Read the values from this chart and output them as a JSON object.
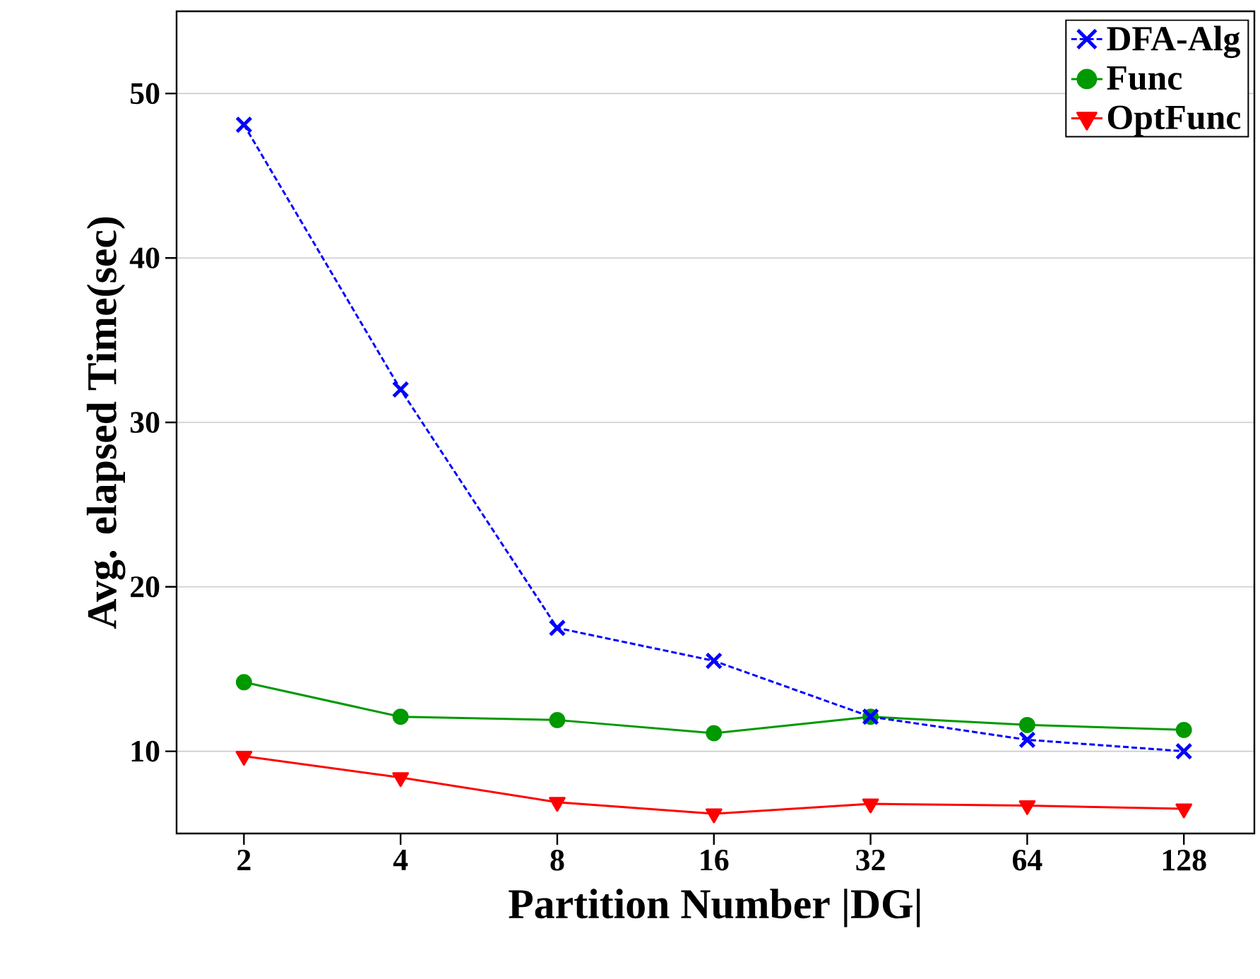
{
  "chart_data": {
    "type": "line",
    "xlabel": "Partition Number |DG|",
    "ylabel": "Avg. elapsed Time(sec)",
    "categories": [
      "2",
      "4",
      "8",
      "16",
      "32",
      "64",
      "128"
    ],
    "series": [
      {
        "name": "DFA-Alg",
        "color": "#0000ff",
        "marker": "cross",
        "line_style": "dashed",
        "values": [
          48.1,
          32.0,
          17.5,
          15.5,
          12.1,
          10.7,
          10.0
        ]
      },
      {
        "name": "Func",
        "color": "#009900",
        "marker": "circle",
        "line_style": "solid",
        "values": [
          14.2,
          12.1,
          11.9,
          11.1,
          12.1,
          11.6,
          11.3
        ]
      },
      {
        "name": "OptFunc",
        "color": "#ff0000",
        "marker": "triangle",
        "line_style": "solid",
        "values": [
          9.7,
          8.4,
          6.9,
          6.2,
          6.8,
          6.7,
          6.5
        ]
      }
    ],
    "ylim": [
      5,
      55
    ],
    "yticks": [
      10,
      20,
      30,
      40,
      50
    ],
    "grid": "y",
    "legend": "top right"
  }
}
